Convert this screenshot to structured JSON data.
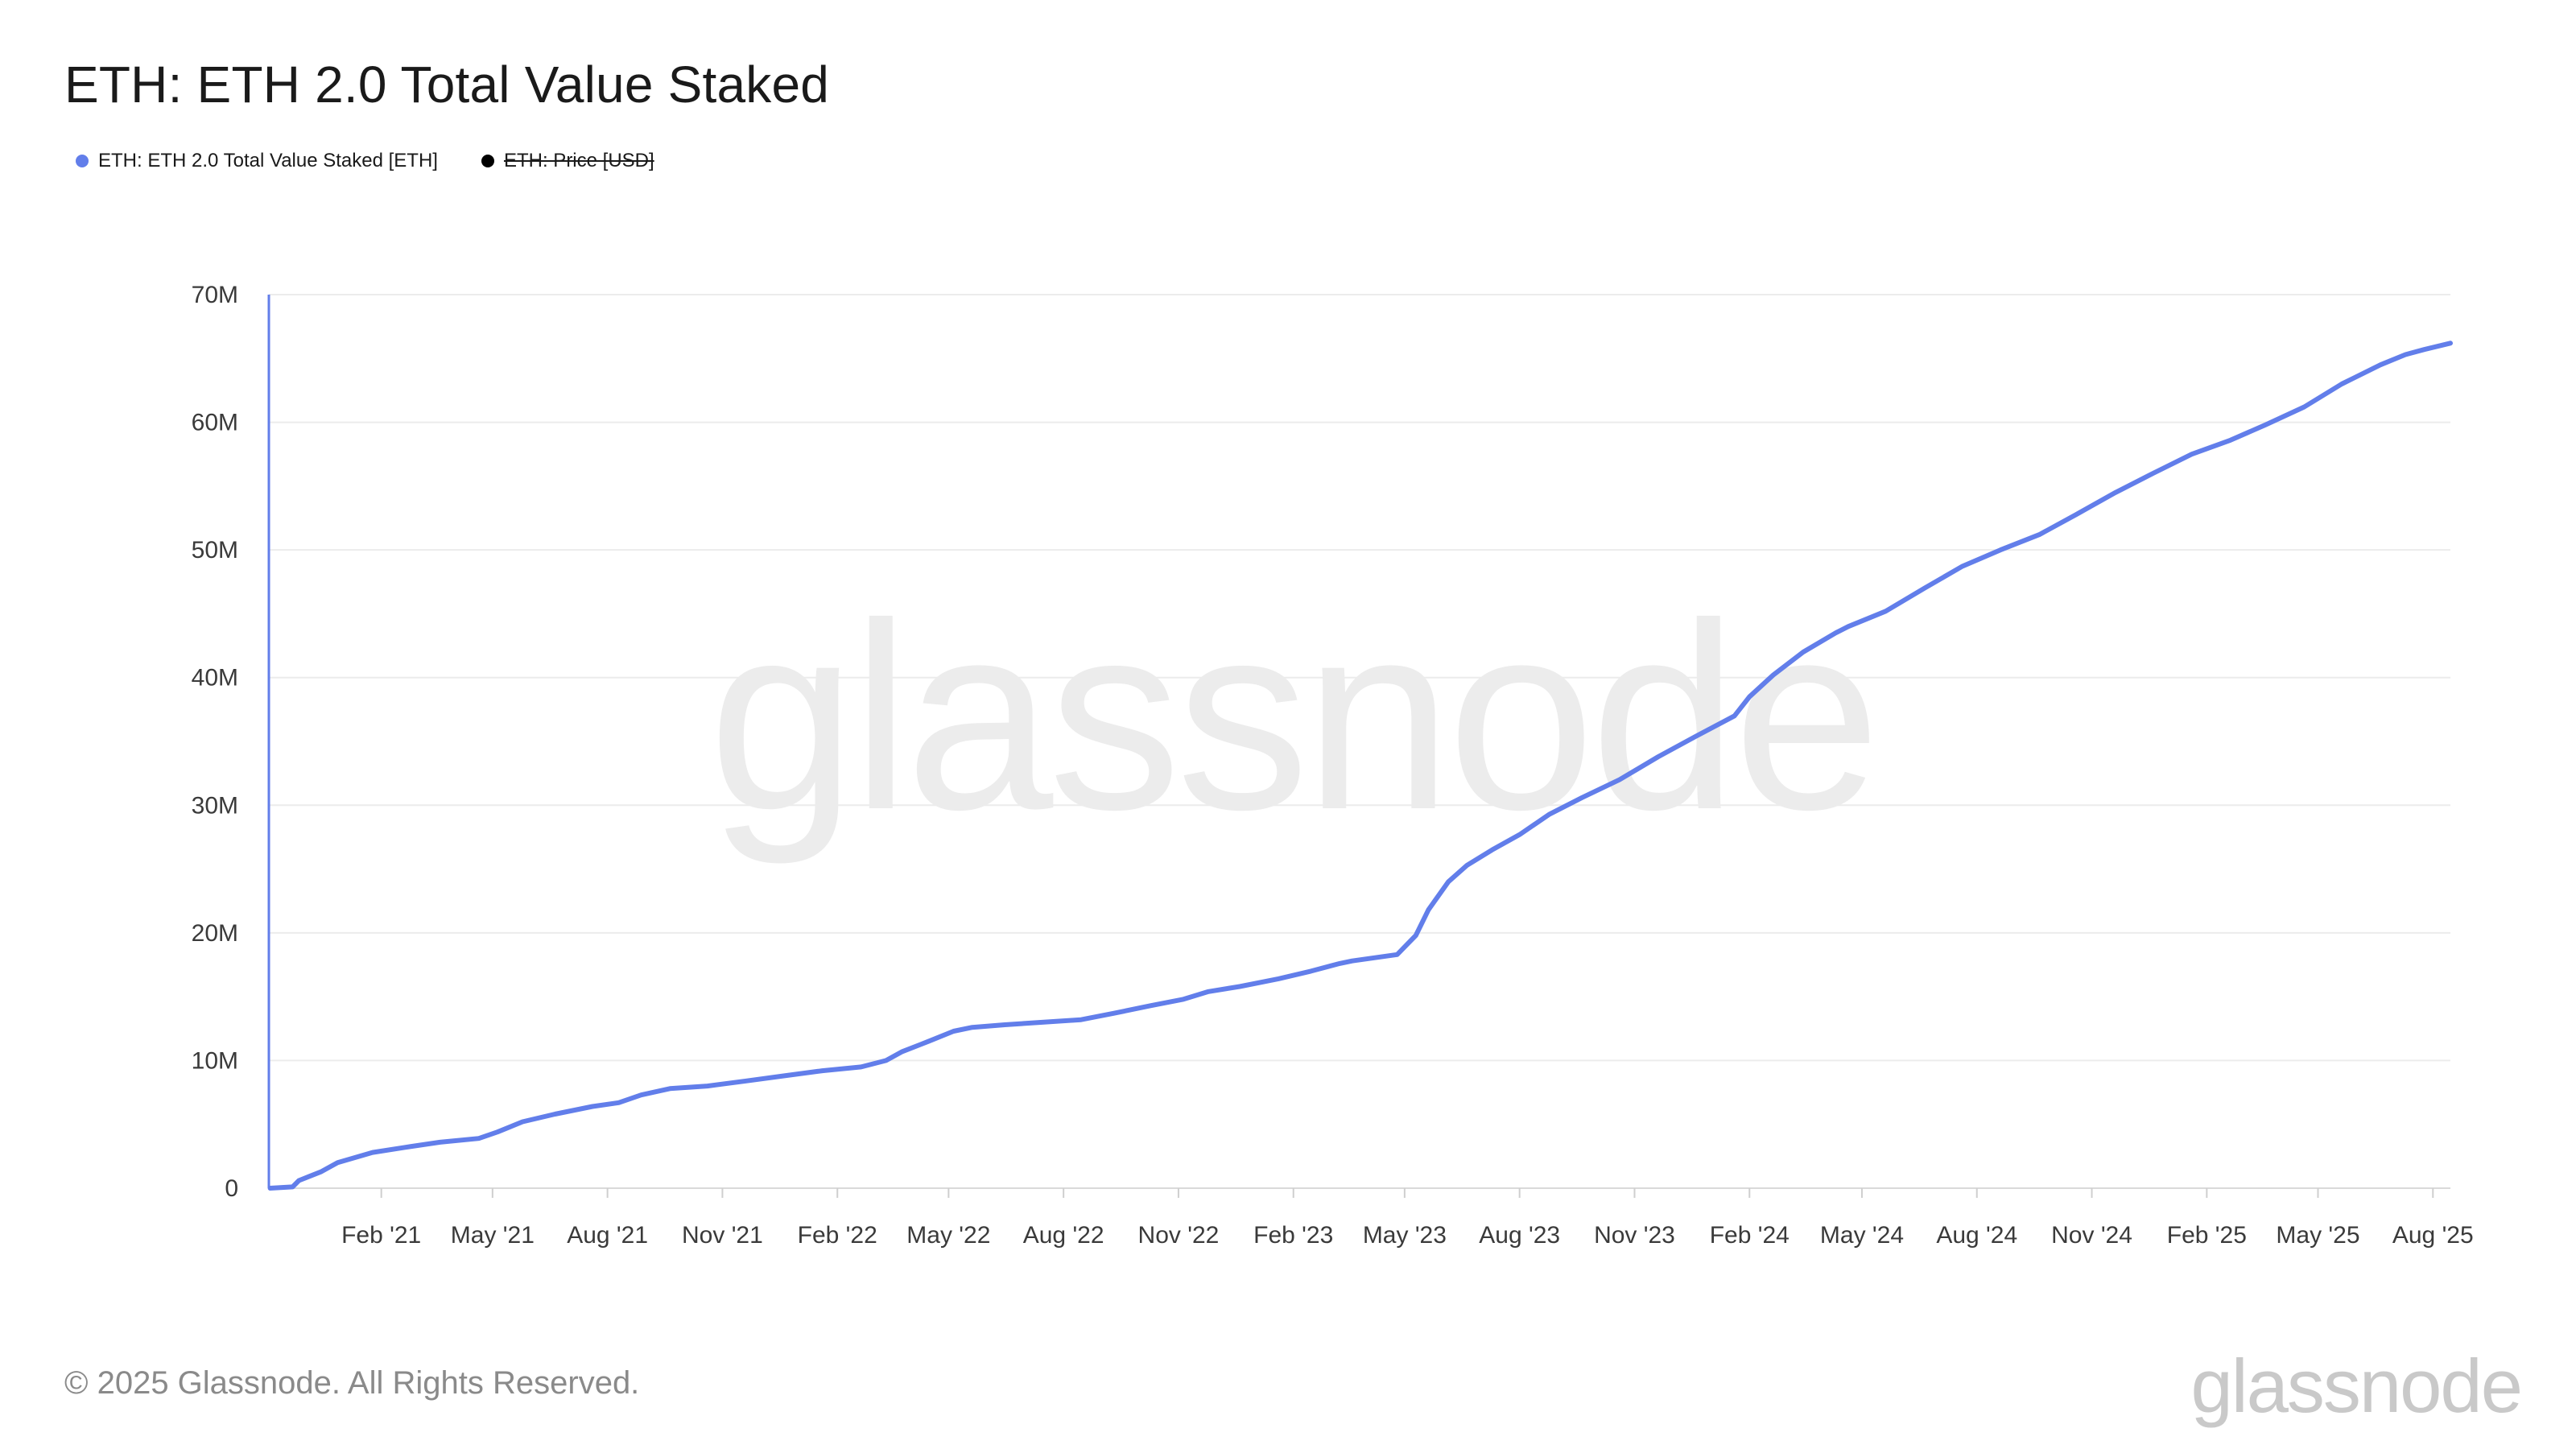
{
  "chart": {
    "title": "ETH: ETH 2.0 Total Value Staked"
  },
  "legend": [
    {
      "label": "ETH: ETH 2.0 Total Value Staked [ETH]",
      "color": "#627eea",
      "enabled": true
    },
    {
      "label": "ETH: Price [USD]",
      "color": "#000000",
      "enabled": false
    }
  ],
  "watermark": "glassnode",
  "footer": {
    "copyright": "© 2025 Glassnode. All Rights Reserved.",
    "logo": "glassnode"
  },
  "chart_data": {
    "type": "line",
    "title": "ETH: ETH 2.0 Total Value Staked",
    "xlabel": "",
    "ylabel": "",
    "x_range": [
      "2020-11-03",
      "2025-08-15"
    ],
    "ylim": [
      0,
      70000000
    ],
    "y_ticks": [
      {
        "value": 0,
        "label": "0"
      },
      {
        "value": 10000000,
        "label": "10M"
      },
      {
        "value": 20000000,
        "label": "20M"
      },
      {
        "value": 30000000,
        "label": "30M"
      },
      {
        "value": 40000000,
        "label": "40M"
      },
      {
        "value": 50000000,
        "label": "50M"
      },
      {
        "value": 60000000,
        "label": "60M"
      },
      {
        "value": 70000000,
        "label": "70M"
      }
    ],
    "x_ticks": [
      {
        "date": "2021-02-01",
        "label": "Feb '21"
      },
      {
        "date": "2021-05-01",
        "label": "May '21"
      },
      {
        "date": "2021-08-01",
        "label": "Aug '21"
      },
      {
        "date": "2021-11-01",
        "label": "Nov '21"
      },
      {
        "date": "2022-02-01",
        "label": "Feb '22"
      },
      {
        "date": "2022-05-01",
        "label": "May '22"
      },
      {
        "date": "2022-08-01",
        "label": "Aug '22"
      },
      {
        "date": "2022-11-01",
        "label": "Nov '22"
      },
      {
        "date": "2023-02-01",
        "label": "Feb '23"
      },
      {
        "date": "2023-05-01",
        "label": "May '23"
      },
      {
        "date": "2023-08-01",
        "label": "Aug '23"
      },
      {
        "date": "2023-11-01",
        "label": "Nov '23"
      },
      {
        "date": "2024-02-01",
        "label": "Feb '24"
      },
      {
        "date": "2024-05-01",
        "label": "May '24"
      },
      {
        "date": "2024-08-01",
        "label": "Aug '24"
      },
      {
        "date": "2024-11-01",
        "label": "Nov '24"
      },
      {
        "date": "2025-02-01",
        "label": "Feb '25"
      },
      {
        "date": "2025-05-01",
        "label": "May '25"
      },
      {
        "date": "2025-08-01",
        "label": "Aug '25"
      }
    ],
    "grid": {
      "horizontal": true,
      "vertical": false
    },
    "series": [
      {
        "name": "ETH: ETH 2.0 Total Value Staked [ETH]",
        "color": "#627eea",
        "x": [
          "2020-11-04",
          "2020-11-22",
          "2020-11-27",
          "2020-12-15",
          "2020-12-28",
          "2021-01-25",
          "2021-02-20",
          "2021-03-20",
          "2021-04-20",
          "2021-05-05",
          "2021-05-25",
          "2021-06-20",
          "2021-07-20",
          "2021-08-10",
          "2021-08-28",
          "2021-09-20",
          "2021-10-20",
          "2021-11-20",
          "2021-12-20",
          "2022-01-20",
          "2022-02-20",
          "2022-03-12",
          "2022-03-25",
          "2022-04-15",
          "2022-05-05",
          "2022-05-20",
          "2022-06-15",
          "2022-07-15",
          "2022-08-15",
          "2022-09-10",
          "2022-10-10",
          "2022-11-05",
          "2022-11-25",
          "2022-12-20",
          "2023-01-20",
          "2023-02-15",
          "2023-03-10",
          "2023-03-20",
          "2023-04-25",
          "2023-05-10",
          "2023-05-20",
          "2023-06-05",
          "2023-06-20",
          "2023-07-10",
          "2023-08-01",
          "2023-08-25",
          "2023-09-20",
          "2023-10-20",
          "2023-11-20",
          "2023-12-20",
          "2024-01-20",
          "2024-02-01",
          "2024-02-20",
          "2024-03-15",
          "2024-04-10",
          "2024-04-20",
          "2024-05-20",
          "2024-06-20",
          "2024-07-20",
          "2024-08-20",
          "2024-09-20",
          "2024-10-20",
          "2024-11-20",
          "2024-12-20",
          "2025-01-20",
          "2025-02-20",
          "2025-03-20",
          "2025-04-20",
          "2025-05-20",
          "2025-06-20",
          "2025-07-10",
          "2025-07-25",
          "2025-08-15"
        ],
        "values": [
          0,
          100000,
          600000,
          1300000,
          2000000,
          2800000,
          3200000,
          3600000,
          3900000,
          4400000,
          5200000,
          5800000,
          6400000,
          6700000,
          7300000,
          7800000,
          8000000,
          8400000,
          8800000,
          9200000,
          9500000,
          10000000,
          10700000,
          11500000,
          12300000,
          12600000,
          12800000,
          13000000,
          13200000,
          13700000,
          14300000,
          14800000,
          15400000,
          15800000,
          16400000,
          17000000,
          17600000,
          17800000,
          18300000,
          19800000,
          21800000,
          24000000,
          25300000,
          26500000,
          27700000,
          29300000,
          30600000,
          32000000,
          33800000,
          35400000,
          37000000,
          38500000,
          40200000,
          42000000,
          43500000,
          44000000,
          45200000,
          47000000,
          48700000,
          50000000,
          51200000,
          52800000,
          54500000,
          56000000,
          57500000,
          58600000,
          59800000,
          61200000,
          63000000,
          64500000,
          65300000,
          65700000,
          66200000
        ]
      },
      {
        "name": "ETH: Price [USD]",
        "color": "#000000",
        "hidden": true,
        "x": [],
        "values": []
      }
    ]
  }
}
